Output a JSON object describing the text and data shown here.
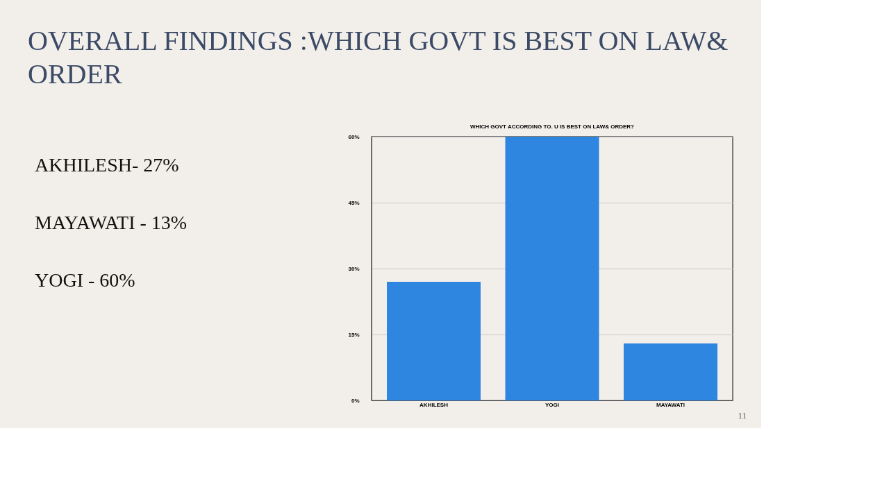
{
  "chart_data": {
    "type": "bar",
    "title": "OVERALL FINDINGS :WHICH GOVT IS BEST ON LAW& ORDER",
    "subtitle": "WHICH GOVT ACCORDING TO. U IS BEST ON LAW& ORDER?",
    "categories": [
      "AKHILESH",
      "YOGI",
      "MAYAWATI"
    ],
    "values": [
      27,
      60,
      13
    ],
    "color": "#2f86e0",
    "ylim": [
      0,
      60
    ],
    "yticks": [
      {
        "value": 0,
        "label": "0%"
      },
      {
        "value": 15,
        "label": "15%"
      },
      {
        "value": 30,
        "label": "30%"
      },
      {
        "value": 45,
        "label": "45%"
      },
      {
        "value": 60,
        "label": "60%"
      }
    ],
    "grid": "y",
    "annotations": [
      "AKHILESH- 27%",
      "MAYAWATI - 13%",
      "YOGI - 60%",
      "11"
    ]
  }
}
